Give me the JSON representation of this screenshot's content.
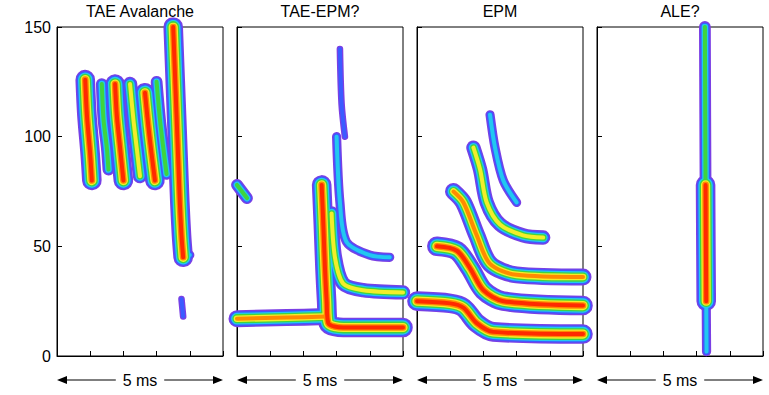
{
  "chart_data": [
    {
      "type": "spectrogram",
      "title": "TAE Avalanche",
      "x_label": "5 ms",
      "xlim": [
        0,
        5
      ],
      "xticks": [
        0,
        1,
        2,
        3,
        4,
        5
      ],
      "ylim": [
        0,
        150
      ],
      "yticks": [
        0,
        50,
        100,
        150
      ],
      "tick_labels": "y",
      "series": [
        {
          "color": "#ff2a00",
          "values": [
            [
              0.85,
              126
            ],
            [
              0.9,
              110
            ],
            [
              1.0,
              92
            ],
            [
              1.05,
              80
            ]
          ]
        },
        {
          "color": "#3fd43f",
          "values": [
            [
              1.35,
              124
            ],
            [
              1.4,
              108
            ],
            [
              1.5,
              95
            ],
            [
              1.55,
              85
            ]
          ]
        },
        {
          "color": "#ff2a00",
          "values": [
            [
              1.75,
              124
            ],
            [
              1.8,
              110
            ],
            [
              1.9,
              95
            ],
            [
              2.0,
              80
            ]
          ]
        },
        {
          "color": "#f2ee2a",
          "values": [
            [
              2.2,
              124
            ],
            [
              2.3,
              108
            ],
            [
              2.4,
              95
            ],
            [
              2.5,
              82
            ]
          ]
        },
        {
          "color": "#ff2a00",
          "values": [
            [
              2.65,
              120
            ],
            [
              2.75,
              105
            ],
            [
              2.85,
              92
            ],
            [
              2.95,
              80
            ]
          ]
        },
        {
          "color": "#3fd43f",
          "values": [
            [
              3.0,
              125
            ],
            [
              3.1,
              108
            ],
            [
              3.2,
              95
            ],
            [
              3.3,
              83
            ]
          ]
        },
        {
          "color": "#22c8f0",
          "values": [
            [
              3.45,
              118
            ],
            [
              3.5,
              100
            ],
            [
              3.55,
              88
            ]
          ]
        },
        {
          "color": "#22c8f0",
          "values": [
            [
              3.8,
              47
            ],
            [
              3.9,
              46
            ],
            [
              4.0,
              46
            ]
          ]
        },
        {
          "color": "#ff2a00",
          "values": [
            [
              3.5,
              150
            ],
            [
              3.55,
              130
            ],
            [
              3.6,
              110
            ],
            [
              3.65,
              90
            ],
            [
              3.7,
              70
            ],
            [
              3.75,
              55
            ],
            [
              3.8,
              45
            ]
          ]
        },
        {
          "color": "#3b5bff",
          "values": [
            [
              3.75,
              26
            ],
            [
              3.8,
              18
            ]
          ]
        }
      ]
    },
    {
      "type": "spectrogram",
      "title": "TAE-EPM?",
      "x_label": "5 ms",
      "xlim": [
        0,
        5
      ],
      "xticks": [
        0,
        1,
        2,
        3,
        4,
        5
      ],
      "ylim": [
        0,
        150
      ],
      "yticks": [
        0,
        50,
        100,
        150
      ],
      "tick_labels": false,
      "series": [
        {
          "color": "#3fd43f",
          "values": [
            [
              0,
              78
            ],
            [
              0.3,
              72
            ]
          ]
        },
        {
          "color": "#ff8a00",
          "values": [
            [
              0,
              17
            ],
            [
              1.5,
              17.5
            ],
            [
              2.7,
              18
            ]
          ]
        },
        {
          "color": "#3b5bff",
          "values": [
            [
              3.1,
              140
            ],
            [
              3.15,
              115
            ],
            [
              3.25,
              100
            ]
          ]
        },
        {
          "color": "#22c8f0",
          "values": [
            [
              3.0,
              100
            ],
            [
              3.1,
              70
            ],
            [
              3.3,
              52
            ],
            [
              4.0,
              46
            ],
            [
              4.6,
              45
            ]
          ]
        },
        {
          "color": "#f2ee2a",
          "values": [
            [
              2.85,
              65
            ],
            [
              2.95,
              45
            ],
            [
              3.2,
              33
            ],
            [
              3.8,
              30
            ],
            [
              5,
              29
            ]
          ]
        },
        {
          "color": "#ff2a00",
          "values": [
            [
              2.55,
              78
            ],
            [
              2.6,
              60
            ],
            [
              2.65,
              40
            ],
            [
              2.7,
              25
            ],
            [
              2.75,
              15
            ],
            [
              3.2,
              13
            ],
            [
              5,
              13
            ]
          ]
        }
      ]
    },
    {
      "type": "spectrogram",
      "title": "EPM",
      "x_label": "5 ms",
      "xlim": [
        0,
        5
      ],
      "xticks": [
        0,
        1,
        2,
        3,
        4,
        5
      ],
      "ylim": [
        0,
        150
      ],
      "yticks": [
        0,
        50,
        100,
        150
      ],
      "tick_labels": false,
      "series": [
        {
          "color": "#22c8f0",
          "values": [
            [
              2.2,
              110
            ],
            [
              2.35,
              95
            ],
            [
              2.6,
              80
            ],
            [
              3.0,
              70
            ]
          ]
        },
        {
          "color": "#f2ee2a",
          "values": [
            [
              1.7,
              95
            ],
            [
              1.9,
              85
            ],
            [
              2.1,
              70
            ],
            [
              2.5,
              60
            ],
            [
              3.2,
              55
            ],
            [
              3.8,
              54
            ]
          ]
        },
        {
          "color": "#ff8a00",
          "values": [
            [
              1.1,
              75
            ],
            [
              1.4,
              70
            ],
            [
              1.8,
              55
            ],
            [
              2.2,
              42
            ],
            [
              3.0,
              37
            ],
            [
              5,
              36
            ]
          ]
        },
        {
          "color": "#ff2a00",
          "values": [
            [
              0.6,
              50
            ],
            [
              1.2,
              48
            ],
            [
              1.6,
              40
            ],
            [
              2.0,
              30
            ],
            [
              2.6,
              25
            ],
            [
              5,
              23
            ]
          ]
        },
        {
          "color": "#ff2a00",
          "values": [
            [
              0,
              25
            ],
            [
              1.0,
              24
            ],
            [
              1.4,
              22
            ],
            [
              1.8,
              15
            ],
            [
              2.3,
              11
            ],
            [
              5,
              10
            ]
          ]
        }
      ]
    },
    {
      "type": "spectrogram",
      "title": "ALE?",
      "x_label": "5 ms",
      "xlim": [
        0,
        5
      ],
      "xticks": [
        0,
        1,
        2,
        3,
        4,
        5
      ],
      "ylim": [
        0,
        150
      ],
      "yticks": [
        0,
        50,
        100,
        150
      ],
      "tick_labels": false,
      "series": [
        {
          "color": "#3fd43f",
          "values": [
            [
              3.25,
              150
            ],
            [
              3.26,
              110
            ],
            [
              3.27,
              75
            ]
          ]
        },
        {
          "color": "#22c8f0",
          "values": [
            [
              3.29,
              25
            ],
            [
              3.3,
              2
            ]
          ]
        },
        {
          "color": "#ff2a00",
          "values": [
            [
              3.27,
              78
            ],
            [
              3.28,
              50
            ],
            [
              3.29,
              25
            ]
          ]
        }
      ]
    }
  ]
}
